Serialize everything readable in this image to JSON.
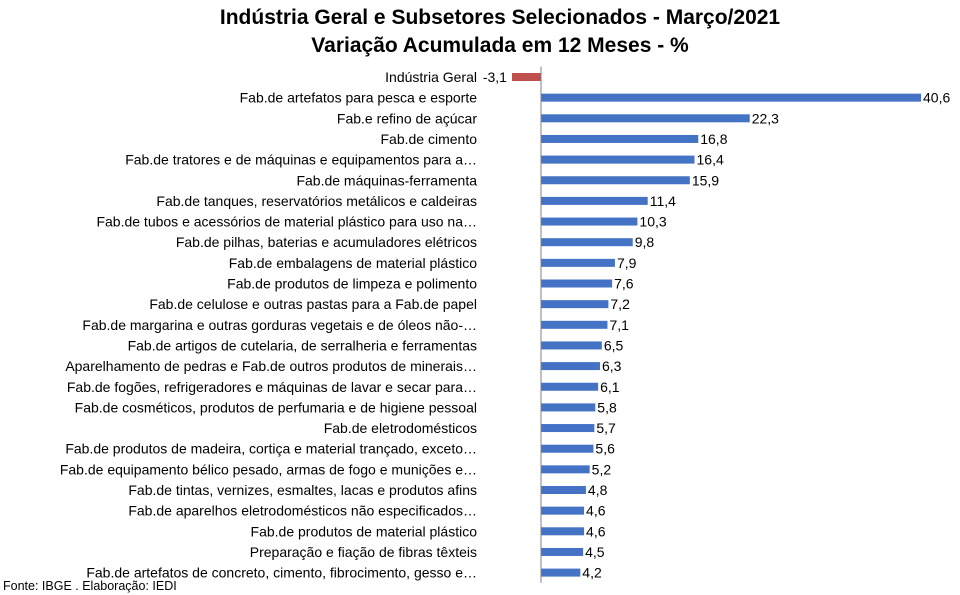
{
  "chart_data": {
    "type": "bar",
    "orientation": "horizontal",
    "title": "Indústria Geral e Subsetores Selecionados - Março/2021",
    "subtitle": "Variação Acumulada em 12 Meses - %",
    "categories": [
      "Indústria Geral",
      "Fab.de artefatos para pesca e esporte",
      "Fab.e refino de açúcar",
      "Fab.de cimento",
      "Fab.de tratores e de máquinas e equipamentos para a…",
      "Fab.de máquinas-ferramenta",
      "Fab.de tanques, reservatórios metálicos e caldeiras",
      "Fab.de tubos e acessórios de material plástico para uso na…",
      "Fab.de pilhas, baterias e acumuladores elétricos",
      "Fab.de embalagens de material plástico",
      "Fab.de produtos de limpeza e polimento",
      "Fab.de celulose e outras pastas para a Fab.de papel",
      "Fab.de margarina e outras gorduras vegetais e de óleos não-…",
      "Fab.de artigos de cutelaria, de serralheria e ferramentas",
      "Aparelhamento de pedras e Fab.de outros produtos de minerais…",
      "Fab.de fogões, refrigeradores e máquinas de lavar e secar para…",
      "Fab.de cosméticos, produtos de perfumaria e de higiene pessoal",
      "Fab.de eletrodomésticos",
      "Fab.de produtos de madeira, cortiça e material trançado, exceto…",
      "Fab.de equipamento bélico pesado, armas de fogo e munições e…",
      "Fab.de tintas, vernizes, esmaltes, lacas e produtos afins",
      "Fab.de aparelhos eletrodomésticos não especificados…",
      "Fab.de produtos de material plástico",
      "Preparação e fiação de fibras têxteis",
      "Fab.de artefatos de concreto, cimento, fibrocimento, gesso e…"
    ],
    "values": [
      -3.1,
      40.6,
      22.3,
      16.8,
      16.4,
      15.9,
      11.4,
      10.3,
      9.8,
      7.9,
      7.6,
      7.2,
      7.1,
      6.5,
      6.3,
      6.1,
      5.8,
      5.7,
      5.6,
      5.2,
      4.8,
      4.6,
      4.6,
      4.5,
      4.2
    ],
    "value_labels": [
      "-3,1",
      "40,6",
      "22,3",
      "16,8",
      "16,4",
      "15,9",
      "11,4",
      "10,3",
      "9,8",
      "7,9",
      "7,6",
      "7,2",
      "7,1",
      "6,5",
      "6,3",
      "6,1",
      "5,8",
      "5,7",
      "5,6",
      "5,2",
      "4,8",
      "4,6",
      "4,6",
      "4,5",
      "4,2"
    ],
    "colors": {
      "positive": "#4472c4",
      "negative": "#c0504d",
      "axis": "#808080"
    },
    "xlim": [
      -3.1,
      40.6
    ],
    "grid": false,
    "legend": "none"
  },
  "footnote": "Fonte: IBGE . Elaboração: IEDI"
}
